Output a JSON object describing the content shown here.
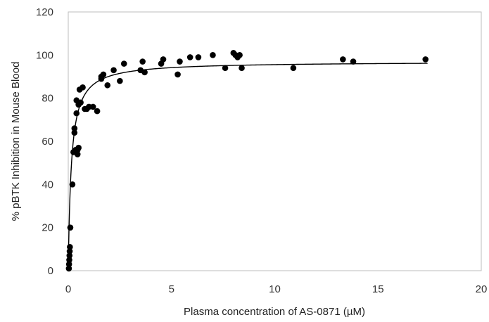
{
  "chart_data": {
    "type": "scatter",
    "title": "",
    "xlabel": "Plasma concentration of AS-0871 (µM)",
    "ylabel": "% pBTK Inhibition in Mouse Blood",
    "xlim": [
      0,
      20
    ],
    "ylim": [
      0,
      120
    ],
    "x_ticks": [
      0,
      5,
      10,
      15,
      20
    ],
    "y_ticks": [
      0,
      20,
      40,
      60,
      80,
      100,
      120
    ],
    "grid": false,
    "legend": "none",
    "marker_color": "#000000",
    "series": [
      {
        "points": [
          [
            0.03,
            1
          ],
          [
            0.04,
            3
          ],
          [
            0.05,
            5
          ],
          [
            0.06,
            7
          ],
          [
            0.07,
            9
          ],
          [
            0.08,
            11
          ],
          [
            0.1,
            20
          ],
          [
            0.2,
            40
          ],
          [
            0.25,
            55
          ],
          [
            0.3,
            64
          ],
          [
            0.3,
            66
          ],
          [
            0.35,
            56
          ],
          [
            0.4,
            73
          ],
          [
            0.4,
            79
          ],
          [
            0.45,
            54
          ],
          [
            0.45,
            56
          ],
          [
            0.5,
            57
          ],
          [
            0.5,
            77
          ],
          [
            0.55,
            84
          ],
          [
            0.6,
            78
          ],
          [
            0.7,
            85
          ],
          [
            0.8,
            75
          ],
          [
            0.9,
            75
          ],
          [
            1.0,
            76
          ],
          [
            1.2,
            76
          ],
          [
            1.4,
            74
          ],
          [
            1.6,
            89
          ],
          [
            1.6,
            90
          ],
          [
            1.7,
            91
          ],
          [
            1.9,
            86
          ],
          [
            2.2,
            93
          ],
          [
            2.5,
            88
          ],
          [
            2.7,
            96
          ],
          [
            3.5,
            93
          ],
          [
            3.6,
            97
          ],
          [
            3.7,
            92
          ],
          [
            4.5,
            96
          ],
          [
            4.6,
            98
          ],
          [
            5.3,
            91
          ],
          [
            5.4,
            97
          ],
          [
            5.9,
            99
          ],
          [
            6.3,
            99
          ],
          [
            7.0,
            100
          ],
          [
            7.6,
            94
          ],
          [
            8.0,
            101
          ],
          [
            8.1,
            100
          ],
          [
            8.2,
            99
          ],
          [
            8.3,
            100
          ],
          [
            8.4,
            94
          ],
          [
            10.9,
            94
          ],
          [
            13.3,
            98
          ],
          [
            13.8,
            97
          ],
          [
            17.3,
            98
          ]
        ]
      }
    ],
    "fit_curve": {
      "model": "hyperbolic",
      "emax": 97,
      "ec50": 0.15
    }
  }
}
